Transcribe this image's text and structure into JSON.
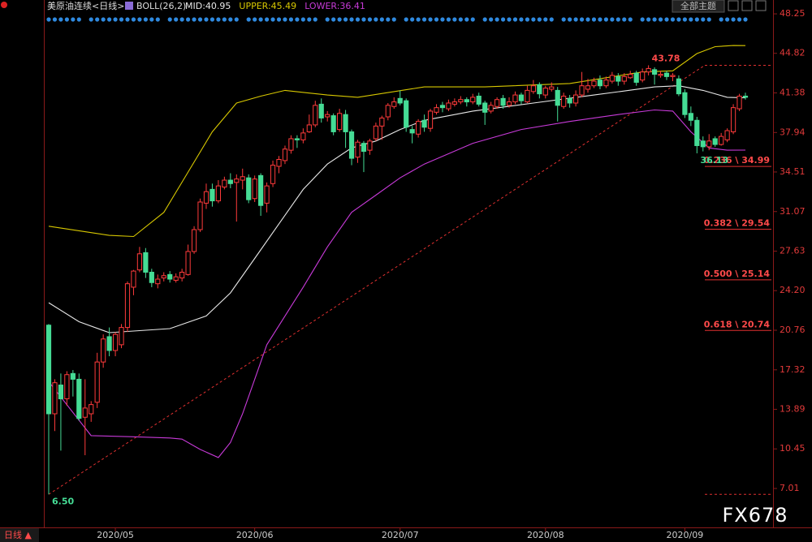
{
  "chart_data": {
    "type": "candlestick",
    "title": "美原油连续<日线>",
    "indicator": "BOLL(26,2)",
    "toolbar_button": "全部主题",
    "period_tab": "日线 ▲",
    "watermark": "FX678",
    "up_color": "#ff3b3b",
    "down_color": "#45dc95",
    "ylim": [
      3.84,
      49.1
    ],
    "yticks": [
      7.01,
      10.45,
      13.89,
      17.32,
      20.76,
      {
        "value": 24.2,
        "label": "24.20"
      },
      27.63,
      31.07,
      34.51,
      37.94,
      41.38,
      44.82,
      48.25
    ],
    "categories": [
      null,
      null,
      null,
      null,
      null,
      null,
      null,
      null,
      null,
      null,
      null,
      "2020/05",
      null,
      null,
      null,
      null,
      null,
      null,
      null,
      null,
      null,
      null,
      null,
      null,
      null,
      null,
      null,
      null,
      null,
      null,
      null,
      null,
      null,
      null,
      "2020/06",
      null,
      null,
      null,
      null,
      null,
      null,
      null,
      null,
      null,
      null,
      null,
      null,
      null,
      null,
      null,
      null,
      null,
      null,
      null,
      null,
      null,
      null,
      null,
      "2020/07",
      null,
      null,
      null,
      null,
      null,
      null,
      null,
      null,
      null,
      null,
      null,
      null,
      null,
      null,
      null,
      null,
      null,
      null,
      null,
      null,
      null,
      null,
      null,
      "2020/08",
      null,
      null,
      null,
      null,
      null,
      null,
      null,
      null,
      null,
      null,
      null,
      null,
      null,
      null,
      null,
      null,
      null,
      null,
      null,
      null,
      null,
      null,
      "2020/09",
      null,
      null,
      null,
      null,
      null,
      null,
      null,
      null,
      null,
      null
    ],
    "ohlc": [
      [
        21.2,
        21.3,
        6.5,
        13.5
      ],
      [
        13.5,
        16.5,
        12.0,
        16.2
      ],
      [
        16.0,
        17.0,
        10.3,
        14.8
      ],
      [
        14.8,
        17.2,
        14.2,
        16.9
      ],
      [
        17.0,
        17.3,
        15.0,
        16.5
      ],
      [
        16.5,
        17.0,
        12.9,
        13.1
      ],
      [
        13.2,
        16.5,
        9.9,
        14.0
      ],
      [
        13.5,
        14.6,
        12.8,
        14.3
      ],
      [
        14.5,
        18.8,
        14.0,
        18.0
      ],
      [
        18.0,
        20.4,
        17.5,
        20.0
      ],
      [
        20.2,
        21.0,
        18.5,
        19.0
      ],
      [
        19.0,
        20.6,
        18.5,
        20.4
      ],
      [
        19.5,
        21.3,
        19.2,
        21.0
      ],
      [
        21.0,
        25.0,
        20.6,
        24.8
      ],
      [
        24.5,
        26.0,
        23.8,
        25.9
      ],
      [
        26.0,
        28.0,
        25.8,
        27.4
      ],
      [
        27.5,
        27.9,
        25.3,
        25.8
      ],
      [
        25.8,
        26.1,
        24.5,
        24.9
      ],
      [
        24.8,
        25.6,
        24.4,
        25.2
      ],
      [
        25.3,
        25.8,
        25.0,
        25.5
      ],
      [
        25.6,
        25.9,
        24.9,
        25.2
      ],
      [
        25.1,
        25.7,
        24.9,
        25.4
      ],
      [
        25.3,
        26.1,
        25.0,
        25.8
      ],
      [
        25.6,
        28.2,
        25.5,
        27.6
      ],
      [
        27.6,
        29.8,
        27.4,
        29.5
      ],
      [
        29.5,
        32.2,
        29.3,
        31.9
      ],
      [
        31.8,
        33.5,
        31.3,
        32.8
      ],
      [
        33.0,
        33.5,
        31.5,
        32.0
      ],
      [
        32.0,
        33.8,
        31.8,
        33.3
      ],
      [
        33.2,
        34.1,
        33.0,
        33.8
      ],
      [
        33.8,
        34.4,
        33.1,
        33.5
      ],
      [
        33.6,
        34.3,
        30.2,
        33.9
      ],
      [
        33.8,
        34.8,
        33.0,
        34.1
      ],
      [
        34.0,
        34.3,
        31.8,
        32.1
      ],
      [
        32.2,
        34.2,
        31.9,
        33.9
      ],
      [
        34.2,
        34.4,
        30.7,
        31.6
      ],
      [
        31.8,
        33.6,
        31.0,
        33.3
      ],
      [
        33.5,
        35.5,
        33.2,
        35.1
      ],
      [
        35.0,
        35.9,
        34.4,
        35.6
      ],
      [
        35.5,
        36.8,
        35.2,
        36.5
      ],
      [
        36.4,
        37.7,
        36.1,
        37.4
      ],
      [
        37.4,
        37.7,
        36.6,
        37.3
      ],
      [
        37.3,
        38.3,
        37.0,
        37.9
      ],
      [
        38.0,
        39.5,
        37.9,
        38.6
      ],
      [
        38.6,
        40.7,
        38.4,
        40.3
      ],
      [
        40.4,
        40.9,
        38.8,
        39.2
      ],
      [
        39.3,
        39.8,
        38.9,
        39.5
      ],
      [
        39.4,
        39.6,
        37.7,
        38.0
      ],
      [
        38.2,
        40.0,
        38.0,
        39.6
      ],
      [
        39.5,
        39.9,
        36.6,
        38.0
      ],
      [
        38.0,
        38.2,
        35.1,
        35.7
      ],
      [
        35.8,
        37.3,
        35.3,
        37.1
      ],
      [
        37.0,
        37.2,
        34.5,
        36.3
      ],
      [
        36.4,
        37.4,
        36.0,
        37.2
      ],
      [
        37.4,
        38.8,
        37.2,
        38.5
      ],
      [
        38.5,
        39.4,
        37.3,
        39.2
      ],
      [
        39.3,
        40.5,
        39.0,
        40.3
      ],
      [
        40.2,
        41.0,
        40.0,
        40.6
      ],
      [
        40.9,
        41.6,
        40.3,
        40.5
      ],
      [
        40.7,
        40.9,
        38.0,
        38.4
      ],
      [
        38.2,
        38.5,
        37.0,
        37.9
      ],
      [
        37.8,
        39.1,
        37.5,
        38.9
      ],
      [
        39.0,
        39.5,
        38.0,
        38.4
      ],
      [
        38.3,
        40.0,
        38.0,
        39.8
      ],
      [
        39.7,
        40.4,
        39.5,
        40.1
      ],
      [
        40.3,
        40.6,
        39.7,
        40.1
      ],
      [
        40.0,
        40.8,
        39.8,
        40.5
      ],
      [
        40.4,
        40.9,
        40.2,
        40.6
      ],
      [
        40.6,
        41.1,
        40.4,
        40.8
      ],
      [
        40.8,
        41.0,
        40.2,
        40.6
      ],
      [
        40.6,
        41.3,
        40.4,
        41.0
      ],
      [
        41.1,
        41.4,
        40.2,
        40.4
      ],
      [
        40.5,
        40.7,
        38.6,
        39.7
      ],
      [
        39.8,
        40.6,
        39.6,
        40.3
      ],
      [
        40.2,
        41.0,
        40.0,
        40.8
      ],
      [
        40.9,
        41.2,
        40.0,
        40.3
      ],
      [
        40.3,
        41.0,
        40.1,
        40.6
      ],
      [
        40.6,
        41.5,
        40.4,
        41.2
      ],
      [
        41.2,
        41.4,
        40.4,
        40.7
      ],
      [
        40.6,
        42.0,
        40.5,
        41.6
      ],
      [
        41.5,
        42.5,
        41.3,
        42.0
      ],
      [
        42.1,
        42.3,
        40.9,
        41.3
      ],
      [
        41.2,
        42.0,
        40.9,
        41.8
      ],
      [
        41.7,
        42.3,
        41.5,
        41.9
      ],
      [
        41.6,
        41.9,
        38.9,
        40.3
      ],
      [
        40.2,
        41.4,
        40.0,
        41.1
      ],
      [
        40.9,
        41.2,
        40.1,
        40.5
      ],
      [
        40.5,
        41.6,
        40.2,
        41.2
      ],
      [
        41.2,
        43.2,
        41.0,
        42.0
      ],
      [
        41.7,
        42.6,
        41.4,
        42.0
      ],
      [
        42.0,
        42.7,
        41.8,
        42.4
      ],
      [
        42.5,
        42.9,
        41.7,
        42.0
      ],
      [
        42.0,
        42.8,
        41.8,
        42.5
      ],
      [
        42.4,
        43.2,
        42.2,
        42.9
      ],
      [
        42.8,
        43.1,
        42.0,
        42.4
      ],
      [
        42.4,
        43.1,
        42.1,
        42.8
      ],
      [
        42.7,
        43.3,
        42.6,
        43.0
      ],
      [
        43.1,
        43.3,
        42.0,
        42.3
      ],
      [
        42.5,
        43.5,
        42.3,
        43.2
      ],
      [
        43.2,
        43.78,
        42.9,
        43.5
      ],
      [
        43.4,
        43.6,
        42.1,
        43.0
      ],
      [
        42.9,
        43.3,
        42.7,
        43.0
      ],
      [
        43.1,
        43.3,
        42.5,
        42.8
      ],
      [
        42.8,
        43.1,
        42.4,
        42.9
      ],
      [
        42.6,
        42.9,
        41.1,
        41.3
      ],
      [
        41.4,
        41.7,
        39.2,
        39.5
      ],
      [
        39.6,
        40.2,
        38.5,
        39.0
      ],
      [
        39.0,
        39.3,
        36.13,
        36.8
      ],
      [
        37.2,
        37.6,
        36.3,
        36.7
      ],
      [
        36.7,
        37.8,
        36.4,
        37.2
      ],
      [
        37.4,
        37.6,
        36.7,
        36.9
      ],
      [
        36.9,
        37.9,
        36.8,
        37.6
      ],
      [
        37.3,
        38.3,
        37.1,
        38.1
      ],
      [
        38.0,
        40.4,
        37.8,
        40.1
      ],
      [
        40.0,
        41.3,
        39.8,
        41.1
      ],
      [
        41.1,
        41.4,
        40.8,
        41.0
      ]
    ],
    "series": [
      {
        "name": "MID:40.95",
        "color": "#e8e8e8",
        "x": [
          0,
          5,
          10,
          20,
          26,
          30,
          34,
          38,
          42,
          46,
          50,
          54,
          58,
          62,
          70,
          80,
          90,
          100,
          104,
          108,
          112,
          115
        ],
        "values": [
          23.15,
          21.5,
          20.55,
          20.9,
          22.0,
          24.0,
          27.0,
          30.0,
          33.0,
          35.2,
          36.6,
          37.2,
          38.2,
          39.0,
          39.8,
          40.5,
          41.2,
          41.9,
          42.0,
          41.6,
          41.0,
          40.95
        ]
      },
      {
        "name": "UPPER:45.49",
        "color": "#d8c800",
        "x": [
          0,
          5,
          10,
          14,
          19,
          23,
          27,
          31,
          35,
          39,
          46,
          51,
          62,
          72,
          86,
          98,
          103,
          107,
          110,
          113,
          115
        ],
        "values": [
          29.8,
          29.4,
          29.0,
          28.9,
          31.0,
          34.5,
          38.0,
          40.5,
          41.1,
          41.6,
          41.2,
          41.0,
          41.9,
          41.9,
          42.2,
          43.2,
          43.3,
          44.8,
          45.4,
          45.5,
          45.49
        ]
      },
      {
        "name": "LOWER:36.41",
        "color": "#c73ad8",
        "x": [
          0,
          7,
          14,
          20,
          22,
          25,
          28,
          30,
          32,
          34,
          36,
          39,
          42,
          46,
          50,
          54,
          58,
          62,
          70,
          78,
          86,
          94,
          100,
          103,
          106,
          109,
          112,
          115
        ],
        "values": [
          16.3,
          11.6,
          11.5,
          11.4,
          11.3,
          10.4,
          9.7,
          11.0,
          13.5,
          16.5,
          19.5,
          22.0,
          24.5,
          28.0,
          31.0,
          32.5,
          34.0,
          35.2,
          37.0,
          38.2,
          38.9,
          39.5,
          39.9,
          39.8,
          38.0,
          36.6,
          36.4,
          36.41
        ]
      }
    ],
    "price_labels": [
      {
        "index": 99,
        "value": 43.78,
        "color": "#ff4a4a"
      },
      {
        "index": 107,
        "value": 36.13,
        "color": "#45dc95"
      },
      {
        "index": 0,
        "value": {
          "value": 6.5,
          "label": "6.50"
        },
        "color": "#45dc95"
      }
    ],
    "fib_levels": [
      {
        "value": 34.99,
        "label": "0.236 \\ 34.99"
      },
      {
        "value": 29.54,
        "label": "0.382 \\ 29.54"
      },
      {
        "value": 25.14,
        "label": "0.500 \\ 25.14"
      },
      {
        "value": 20.74,
        "label": "0.618 \\ 20.74"
      }
    ]
  }
}
